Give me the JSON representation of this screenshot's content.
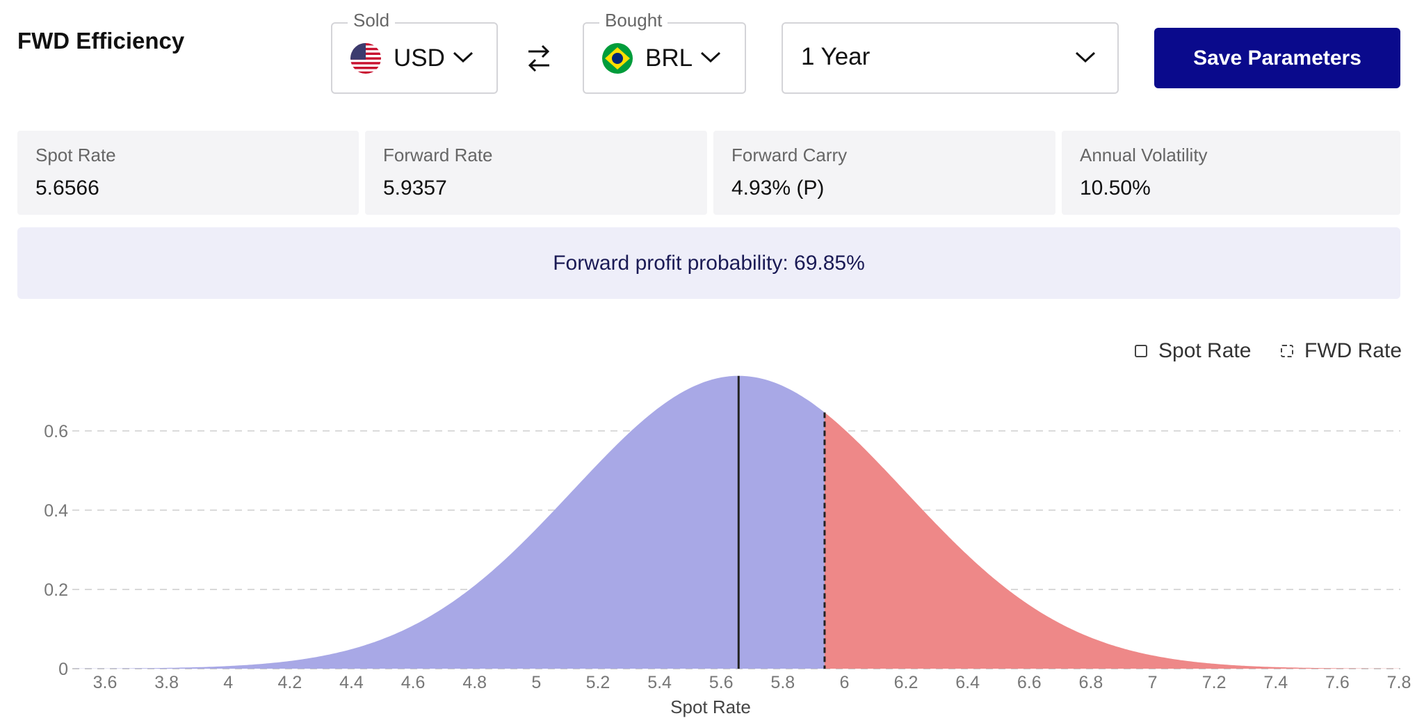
{
  "header": {
    "title": "FWD Efficiency",
    "save_label": "Save Parameters"
  },
  "sold": {
    "label": "Sold",
    "currency": "USD",
    "flag_icon": "us-flag-icon"
  },
  "bought": {
    "label": "Bought",
    "currency": "BRL",
    "flag_icon": "brazil-flag-icon"
  },
  "period": {
    "value": "1 Year"
  },
  "stats": [
    {
      "label": "Spot Rate",
      "value": "5.6566"
    },
    {
      "label": "Forward Rate",
      "value": "5.9357"
    },
    {
      "label": "Forward Carry",
      "value": "4.93% (P)"
    },
    {
      "label": "Annual Volatility",
      "value": "10.50%"
    }
  ],
  "probability": {
    "text": "Forward profit probability: 69.85%"
  },
  "colors": {
    "accent": "#0a0a8c",
    "loss_area": "#a8a8e6",
    "profit_area": "#ee8888"
  },
  "chart_data": {
    "type": "area",
    "xlabel": "Spot Rate",
    "ylabel": "",
    "xlim": [
      3.5,
      7.8
    ],
    "ylim": [
      0,
      0.74
    ],
    "x_ticks": [
      "3.6",
      "3.8",
      "4",
      "4.2",
      "4.4",
      "4.6",
      "4.8",
      "5",
      "5.2",
      "5.4",
      "5.6",
      "5.8",
      "6",
      "6.2",
      "6.4",
      "6.6",
      "6.8",
      "7",
      "7.2",
      "7.4",
      "7.6",
      "7.8"
    ],
    "y_ticks": [
      "0",
      "0.2",
      "0.4",
      "0.6"
    ],
    "grid": true,
    "legend_position": "top-right",
    "legend": [
      "Spot Rate",
      "FWD Rate"
    ],
    "distribution": {
      "kind": "normal",
      "mean": 5.6566,
      "std": 0.54
    },
    "spot_rate": 5.6566,
    "fwd_rate": 5.9357,
    "series": [
      {
        "name": "Spot Rate",
        "marker": "solid vertical line"
      },
      {
        "name": "FWD Rate",
        "marker": "dashed vertical line"
      }
    ]
  }
}
